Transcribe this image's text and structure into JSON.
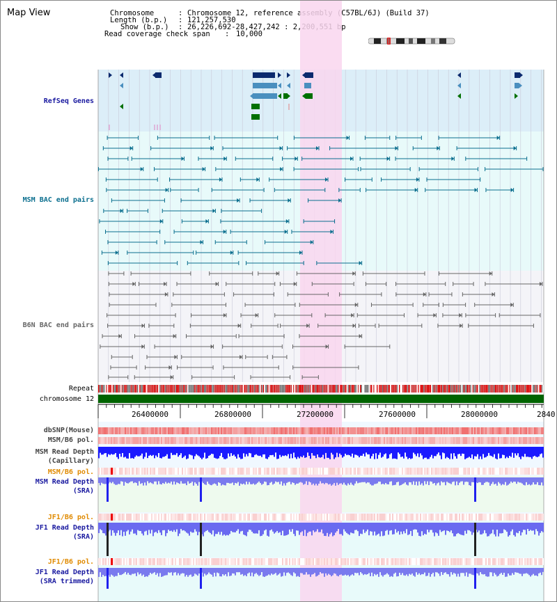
{
  "title": "Map View",
  "info": {
    "chromosome_label": "Chromosome",
    "chromosome_value": "Chromosome 12, reference assembly (C57BL/6J) (Build 37)",
    "length_label": "Length (b.p.)",
    "length_value": "121,257,530",
    "show_label": "Show (b.p.)",
    "show_value": "26,226,692-28,427,242 : 2,200,551 bp",
    "coverage_label": "Read coverage check span",
    "coverage_value": "10,000"
  },
  "tracks": {
    "refseq": "RefSeq Genes",
    "msm_bac": "MSM BAC end pairs",
    "b6n_bac": "B6N BAC end pairs",
    "repeat": "Repeat",
    "chromosome": "chromosome 12",
    "dbsnp": "dbSNP(Mouse)",
    "msm_b6_pol": "MSM/B6 pol.",
    "msm_read_depth_cap_1": "MSM Read Depth",
    "msm_read_depth_cap_2": "(Capillary)",
    "msm_b6_pol_2": "MSM/B6 pol.",
    "msm_read_depth_sra_1": "MSM Read Depth",
    "msm_read_depth_sra_2": "(SRA)",
    "jf1_b6_pol": "JF1/B6 pol.",
    "jf1_read_depth_sra_1": "JF1 Read Depth",
    "jf1_read_depth_sra_2": "(SRA)",
    "jf1_b6_pol_2": "JF1/B6 pol.",
    "jf1_read_depth_trim_1": "JF1 Read Depth",
    "jf1_read_depth_trim_2": "(SRA trimmed)"
  },
  "scale": {
    "ticks": [
      "26400000",
      "26800000",
      "27200000",
      "27600000",
      "28000000",
      "2840"
    ]
  },
  "colors": {
    "refseq_bg": "#dceef8",
    "msm_bg": "#e8fafa",
    "highlight": "#f9d6ee",
    "msm_label": "#0a6e8e",
    "gene_navy": "#0b2a6e",
    "gene_steel": "#4a8fbf",
    "gene_green": "#007000",
    "depth_blue": "#1a1aff",
    "orange_label": "#e08a00",
    "blue_label": "#1a1aa0",
    "chromosome_green": "#006400",
    "snp_red": "#f08080"
  }
}
